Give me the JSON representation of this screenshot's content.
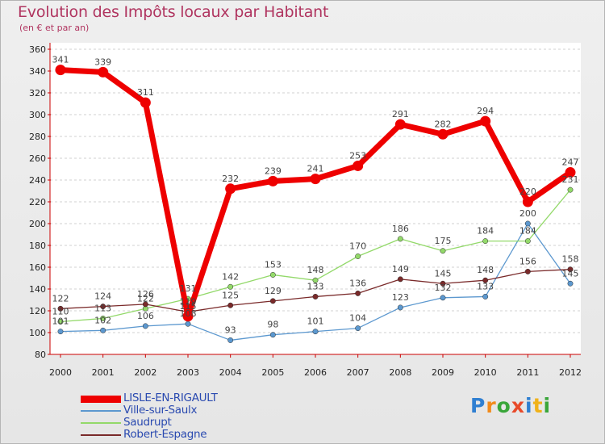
{
  "header": {
    "title": "Evolution des Impôts locaux par Habitant",
    "subtitle": "(en € et par an)"
  },
  "logo": {
    "text": "Proxiti"
  },
  "chart_data": {
    "type": "line",
    "title": "Evolution des Impôts locaux par Habitant",
    "subtitle": "(en € et par an)",
    "xlabel": "",
    "ylabel": "",
    "x": [
      "2000",
      "2001",
      "2002",
      "2003",
      "2004",
      "2005",
      "2006",
      "2007",
      "2008",
      "2009",
      "2010",
      "2011",
      "2012"
    ],
    "ylim": [
      80,
      360
    ],
    "yticks": [
      80,
      100,
      120,
      140,
      160,
      180,
      200,
      220,
      240,
      260,
      280,
      300,
      320,
      340,
      360
    ],
    "grid": "horizontal dashed",
    "legend_position": "bottom-left",
    "series": [
      {
        "name": "LISLE-EN-RIGAULT",
        "color": "#ee0000",
        "values": [
          341,
          339,
          311,
          115,
          232,
          239,
          241,
          253,
          291,
          282,
          294,
          220,
          247
        ]
      },
      {
        "name": "Ville-sur-Saulx",
        "color": "#5c98cf",
        "values": [
          101,
          102,
          106,
          108,
          93,
          98,
          101,
          104,
          123,
          132,
          133,
          200,
          145
        ]
      },
      {
        "name": "Saudrupt",
        "color": "#93d96a",
        "values": [
          110,
          113,
          122,
          131,
          142,
          153,
          148,
          170,
          186,
          175,
          184,
          184,
          231
        ]
      },
      {
        "name": "Robert-Espagne",
        "color": "#7a2a2a",
        "values": [
          122,
          124,
          126,
          119,
          125,
          129,
          133,
          136,
          149,
          145,
          148,
          156,
          158
        ]
      }
    ],
    "data_labels": {
      "LISLE-EN-RIGAULT": [
        "341",
        "339",
        "311",
        "115",
        "232",
        "239",
        "241",
        "253",
        "291",
        "282",
        "294",
        "220",
        "247"
      ],
      "Ville-sur-Saulx": [
        "101",
        "102",
        "106",
        "108",
        "93",
        "98",
        "101",
        "104",
        "123",
        "132",
        "133",
        "200",
        "145"
      ],
      "Saudrupt": [
        "110",
        "113",
        "122",
        "131",
        "142",
        "153",
        "148",
        "170",
        "186",
        "175",
        "184",
        "184",
        "231"
      ],
      "Robert-Espagne": [
        "122",
        "124",
        "126",
        "119",
        "125",
        "129",
        "133",
        "136",
        "149",
        "145",
        "148",
        "156",
        "158"
      ]
    }
  }
}
